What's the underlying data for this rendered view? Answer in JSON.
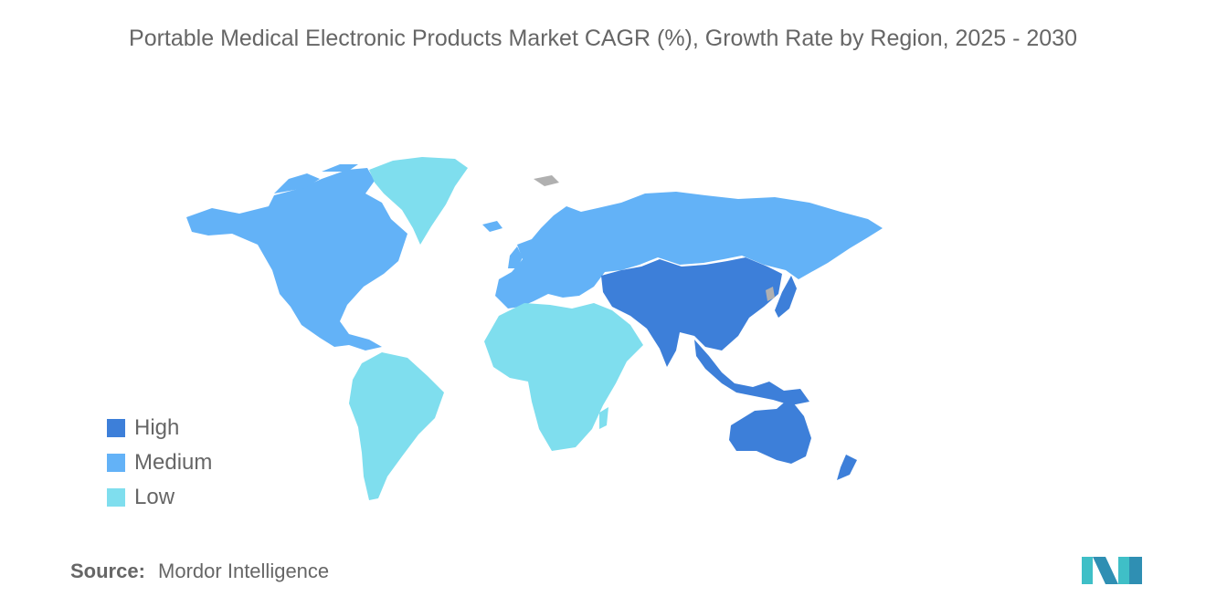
{
  "title": "Portable Medical Electronic Products Market CAGR (%), Growth Rate by Region, 2025 - 2030",
  "colors": {
    "high": "#3d7fd9",
    "medium": "#63b2f7",
    "low": "#7fdeee",
    "no_data": "#b0b0b0"
  },
  "regions": [
    {
      "name": "Asia-Pacific",
      "level": "High"
    },
    {
      "name": "North America",
      "level": "Medium"
    },
    {
      "name": "Europe",
      "level": "Medium"
    },
    {
      "name": "South America",
      "level": "Low"
    },
    {
      "name": "Middle East and Africa",
      "level": "Low"
    },
    {
      "name": "Greenland",
      "level": "Low"
    }
  ],
  "legend": {
    "items": [
      {
        "label": "High",
        "color": "#3d7fd9"
      },
      {
        "label": "Medium",
        "color": "#63b2f7"
      },
      {
        "label": "Low",
        "color": "#7fdeee"
      }
    ]
  },
  "source": {
    "label": "Source:",
    "value": "Mordor Intelligence"
  },
  "logo": {
    "icon": "mordor-intelligence-logo-icon",
    "color": "#3fbfc7"
  }
}
